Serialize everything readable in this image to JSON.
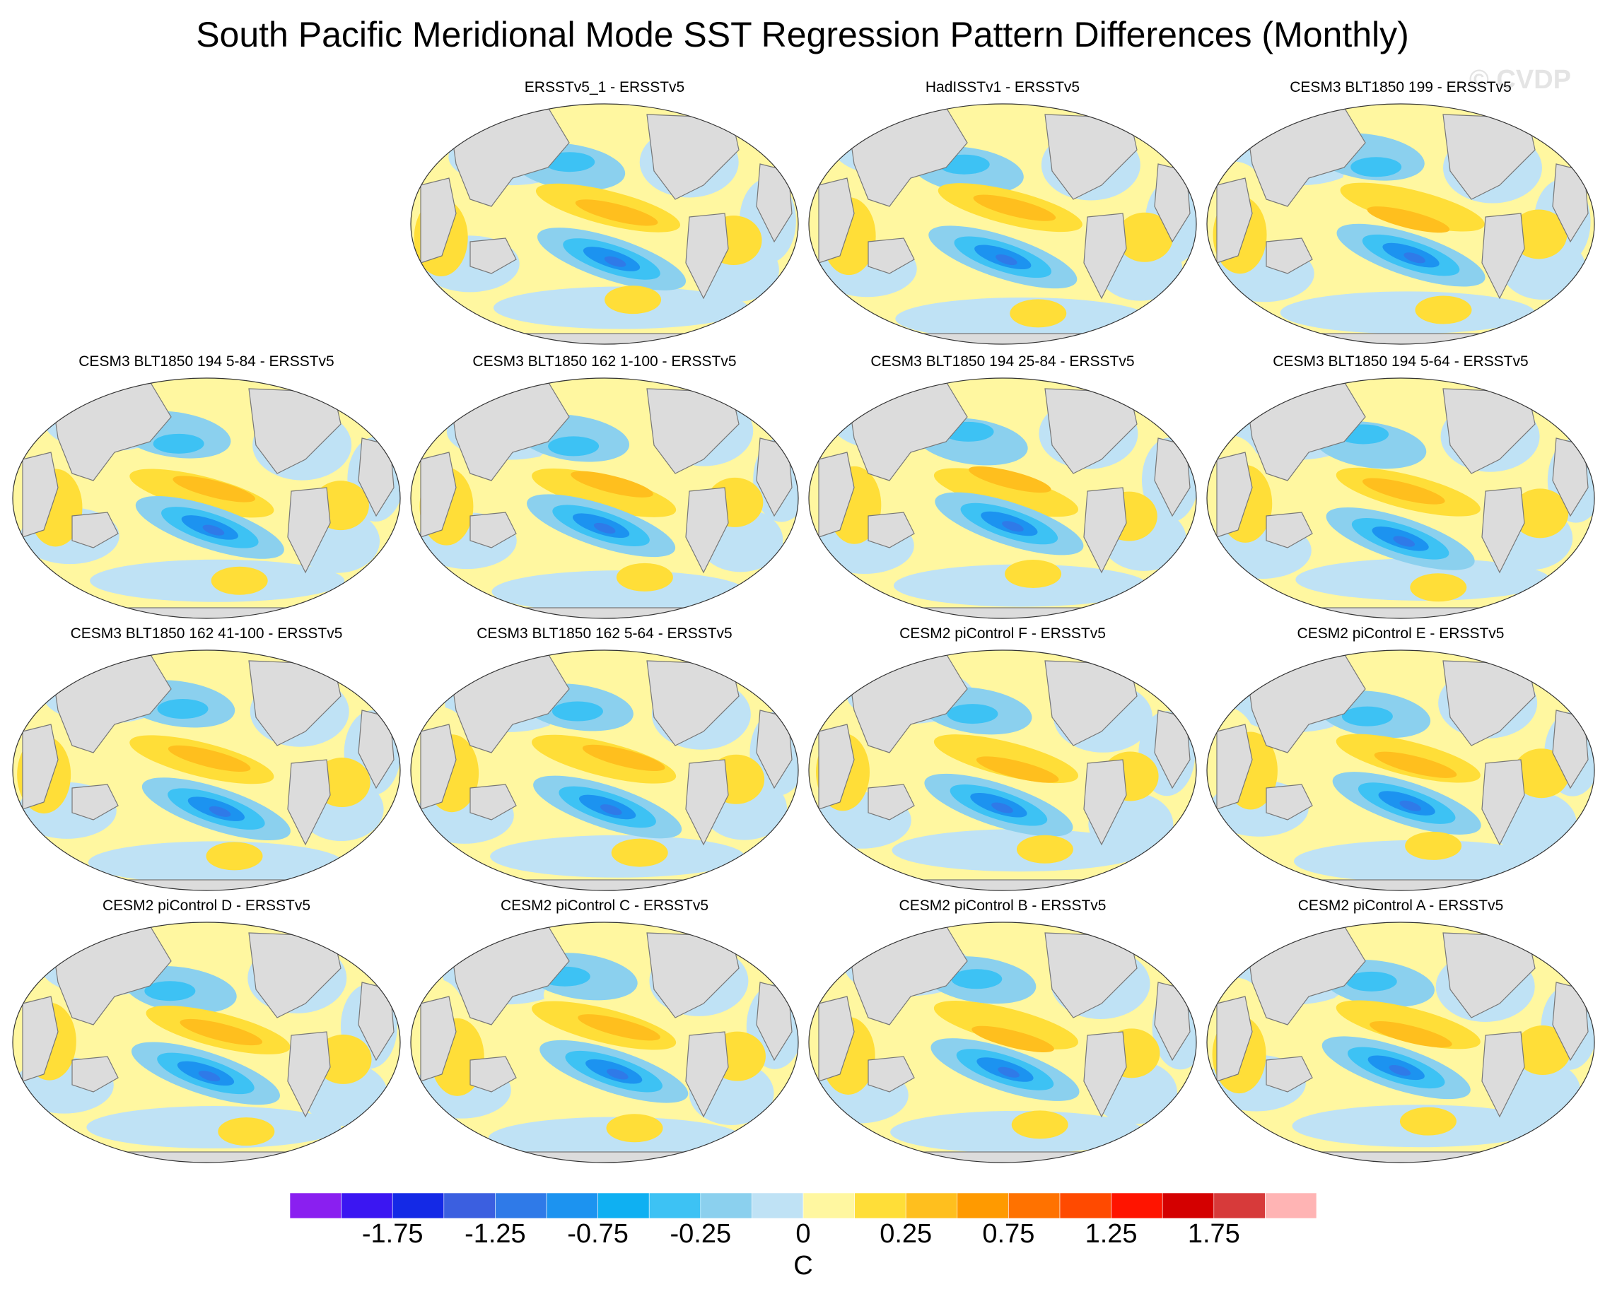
{
  "chart_data": {
    "type": "heatmap",
    "title": "South Pacific Meridional Mode SST Regression Pattern Differences (Monthly)",
    "watermark": "© CVDP",
    "projection": "global robinson",
    "grid": false,
    "colorbar": {
      "unit": "C",
      "tick_labels": [
        "-1.75",
        "-1.25",
        "-0.75",
        "-0.25",
        "0",
        "0.25",
        "0.75",
        "1.25",
        "1.75"
      ],
      "colors": [
        "#8a1ff0",
        "#3b16f2",
        "#1429e6",
        "#3b5fe0",
        "#2f7ae8",
        "#1c93f0",
        "#0fb0f2",
        "#3dc2f4",
        "#8bd0ee",
        "#bfe2f5",
        "#fff7a0",
        "#ffde38",
        "#ffbf1e",
        "#ff9a00",
        "#ff7200",
        "#ff4a00",
        "#ff1400",
        "#d40000",
        "#d73a3a",
        "#ffb4b4"
      ]
    },
    "panels": [
      {
        "title": "ERSSTv5_1 - ERSSTv5",
        "row": 1,
        "col": 2
      },
      {
        "title": "HadISSTv1 - ERSSTv5",
        "row": 1,
        "col": 3
      },
      {
        "title": "CESM3 BLT1850 199 - ERSSTv5",
        "row": 1,
        "col": 4
      },
      {
        "title": "CESM3 BLT1850 194 5-84 - ERSSTv5",
        "row": 2,
        "col": 1
      },
      {
        "title": "CESM3 BLT1850 162 1-100 - ERSSTv5",
        "row": 2,
        "col": 2
      },
      {
        "title": "CESM3 BLT1850 194 25-84 - ERSSTv5",
        "row": 2,
        "col": 3
      },
      {
        "title": "CESM3 BLT1850 194 5-64 - ERSSTv5",
        "row": 2,
        "col": 4
      },
      {
        "title": "CESM3 BLT1850 162 41-100 - ERSSTv5",
        "row": 3,
        "col": 1
      },
      {
        "title": "CESM3 BLT1850 162 5-64 - ERSSTv5",
        "row": 3,
        "col": 2
      },
      {
        "title": "CESM2 piControl F - ERSSTv5",
        "row": 3,
        "col": 3
      },
      {
        "title": "CESM2 piControl E - ERSSTv5",
        "row": 3,
        "col": 4
      },
      {
        "title": "CESM2 piControl D - ERSSTv5",
        "row": 4,
        "col": 1
      },
      {
        "title": "CESM2 piControl C - ERSSTv5",
        "row": 4,
        "col": 2
      },
      {
        "title": "CESM2 piControl B - ERSSTv5",
        "row": 4,
        "col": 3
      },
      {
        "title": "CESM2 piControl A - ERSSTv5",
        "row": 4,
        "col": 4
      }
    ]
  }
}
